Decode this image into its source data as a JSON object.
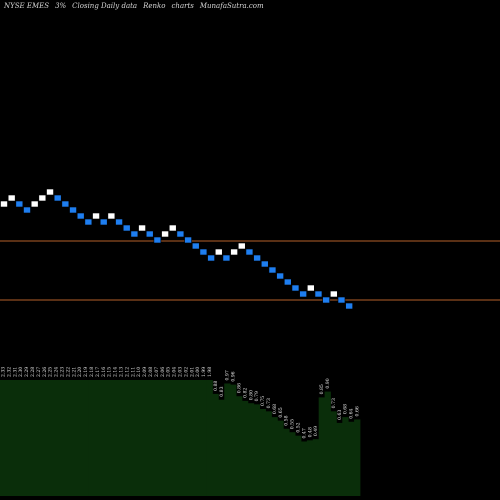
{
  "header": {
    "exchange_symbol": "NYSE EMES",
    "change": "3%",
    "chart_desc": "Closing Daily data",
    "chart_kind": "Renko",
    "chart_word": "charts",
    "site": "MunafaSutra.com"
  },
  "colors": {
    "up_brick": "#ffffff",
    "down_brick": "#1e7ef0",
    "reference_line": "#b45f2a",
    "volume_fill": "#0a2e0a",
    "volume_edge": "#155515"
  },
  "chart_data": [
    {
      "type": "renko",
      "brick_directions": [
        "up",
        "up",
        "down",
        "down",
        "up",
        "up",
        "up",
        "down",
        "down",
        "down",
        "down",
        "down",
        "up",
        "down",
        "up",
        "down",
        "down",
        "down",
        "up",
        "down",
        "down",
        "up",
        "up",
        "down",
        "down",
        "down",
        "down",
        "down",
        "up",
        "down",
        "up",
        "up",
        "down",
        "down",
        "down",
        "down",
        "down",
        "down",
        "down",
        "down",
        "up",
        "down",
        "down",
        "up",
        "down",
        "down"
      ],
      "reference_lines": 2
    },
    {
      "type": "bar",
      "values": [
        2.33,
        2.32,
        2.31,
        2.3,
        2.29,
        2.28,
        2.27,
        2.26,
        2.25,
        2.24,
        2.23,
        2.22,
        2.21,
        2.2,
        2.19,
        2.18,
        2.17,
        2.16,
        2.15,
        2.14,
        2.13,
        2.12,
        2.11,
        2.1,
        2.09,
        2.08,
        2.07,
        2.06,
        2.05,
        2.04,
        2.03,
        2.02,
        2.01,
        2.0,
        1.99,
        1.98,
        0.88,
        0.83,
        0.97,
        0.96,
        0.86,
        0.82,
        0.8,
        0.79,
        0.75,
        0.73,
        0.68,
        0.65,
        0.58,
        0.55,
        0.52,
        0.47,
        0.48,
        0.49,
        0.85,
        0.9,
        0.73,
        0.63,
        0.68,
        0.64,
        0.66
      ],
      "labels": [
        "2.33",
        "2.32",
        "2.31",
        "2.30",
        "2.29",
        "2.28",
        "2.27",
        "2.26",
        "2.25",
        "2.24",
        "2.23",
        "2.22",
        "2.21",
        "2.20",
        "2.19",
        "2.18",
        "2.17",
        "2.16",
        "2.15",
        "2.14",
        "2.13",
        "2.12",
        "2.11",
        "2.10",
        "2.09",
        "2.08",
        "2.07",
        "2.06",
        "2.05",
        "2.04",
        "2.03",
        "2.02",
        "2.01",
        "2.00",
        "1.99",
        "1.98",
        "0.88",
        "0.83",
        "0.97",
        "0.96",
        "0.86",
        "0.82",
        "0.80",
        "0.79",
        "0.75",
        "0.73",
        "0.68",
        "0.65",
        "0.58",
        "0.55",
        "0.52",
        "0.47",
        "0.48",
        "0.49",
        "0.85",
        "0.90",
        "0.73",
        "0.63",
        "0.68",
        "0.64",
        "0.66"
      ]
    }
  ]
}
